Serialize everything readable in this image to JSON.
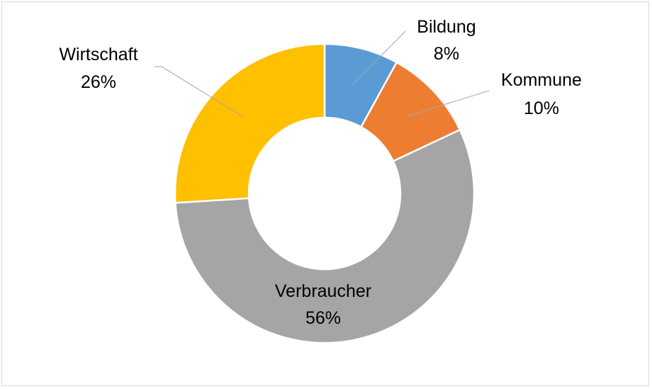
{
  "chart_data": {
    "type": "pie",
    "variant": "donut",
    "title": "",
    "legend": "none",
    "slices": [
      {
        "name": "Bildung",
        "value": 8,
        "label": "8%",
        "color": "#5B9BD5"
      },
      {
        "name": "Kommune",
        "value": 10,
        "label": "10%",
        "color": "#ED7D31"
      },
      {
        "name": "Verbraucher",
        "value": 56,
        "label": "56%",
        "color": "#A5A5A5"
      },
      {
        "name": "Wirtschaft",
        "value": 26,
        "label": "26%",
        "color": "#FFC000"
      }
    ]
  }
}
